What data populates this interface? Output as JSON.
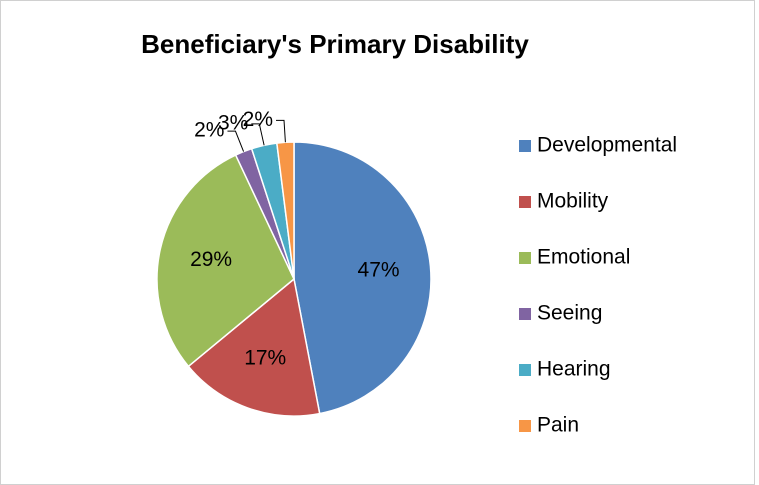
{
  "chart_data": {
    "type": "pie",
    "title": "Beneficiary's Primary Disability",
    "categories": [
      "Developmental",
      "Mobility",
      "Emotional",
      "Seeing",
      "Hearing",
      "Pain"
    ],
    "values": [
      47,
      17,
      29,
      2,
      3,
      2
    ],
    "value_labels": [
      "47%",
      "17%",
      "29%",
      "2%",
      "3%",
      "2%"
    ],
    "colors": [
      "#4f81bd",
      "#c0504d",
      "#9bbb59",
      "#8064a2",
      "#4bacc6",
      "#f79646"
    ],
    "legend": "right"
  }
}
